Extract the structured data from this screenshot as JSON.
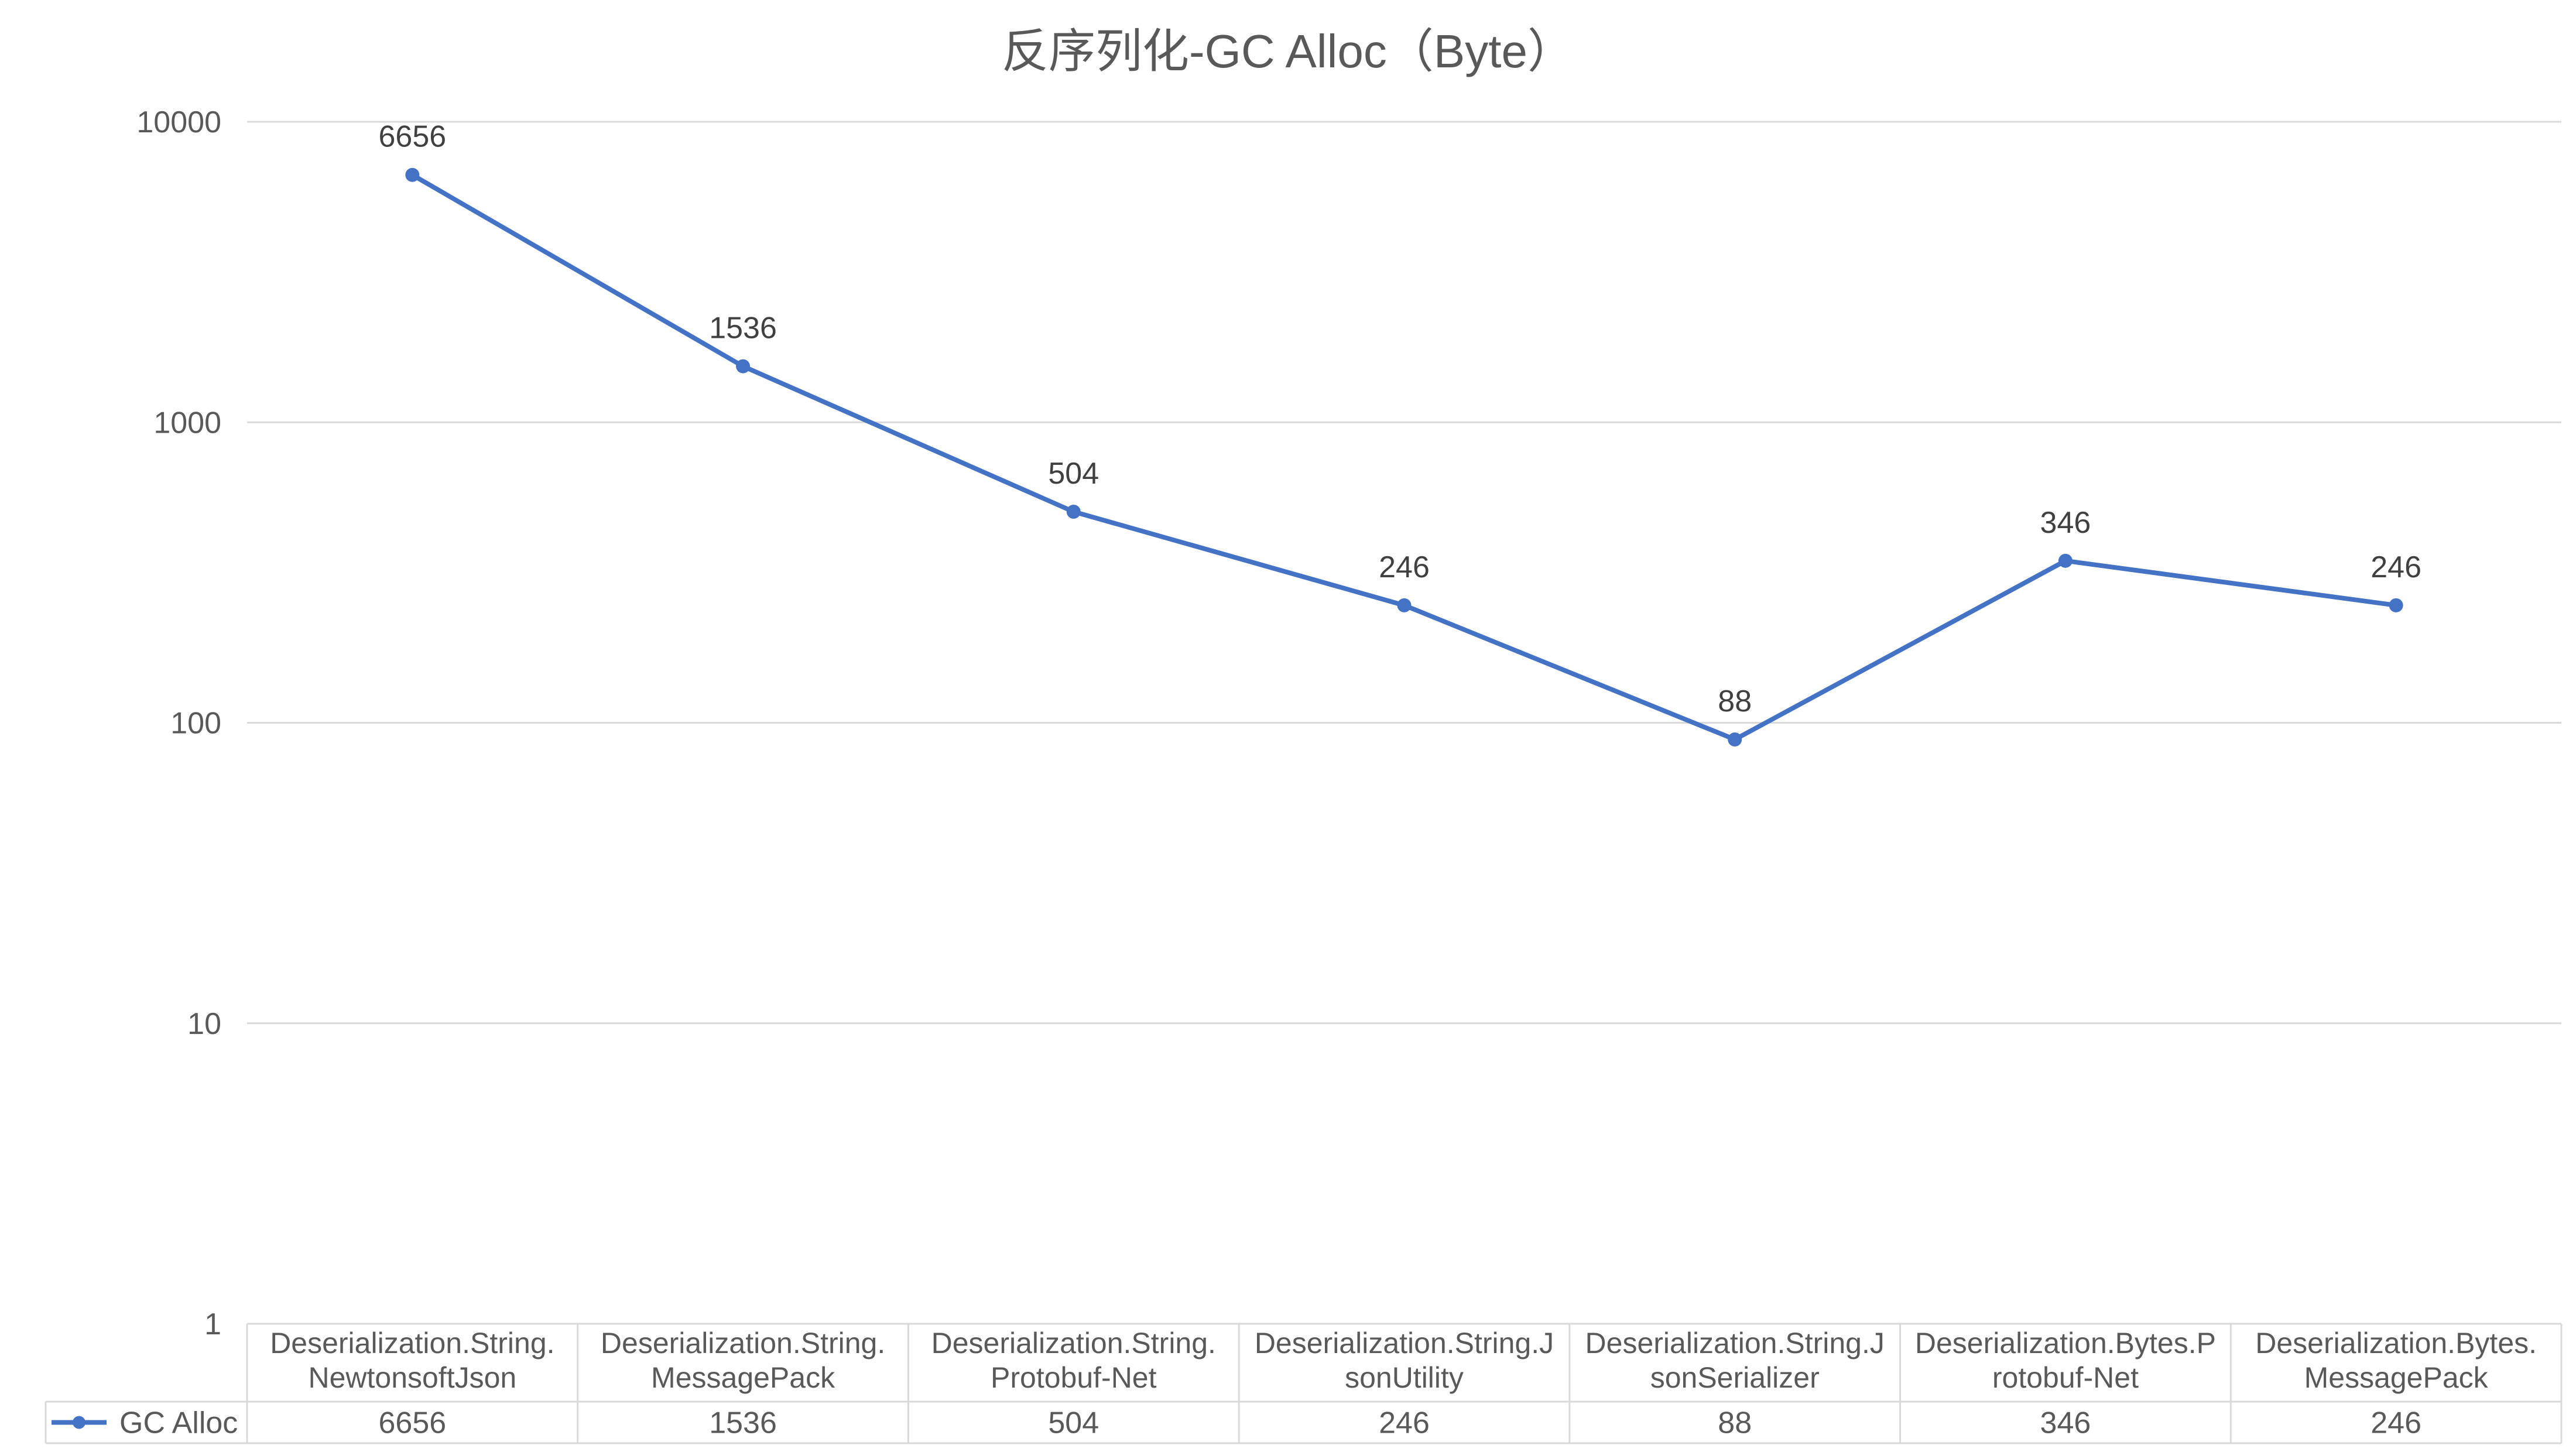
{
  "chart_data": {
    "type": "line",
    "title": "反序列化-GC Alloc（Byte）",
    "xlabel": "",
    "ylabel": "",
    "y_scale": "log",
    "ylim": [
      1,
      10000
    ],
    "y_ticks": [
      "1",
      "10",
      "100",
      "1000",
      "10000"
    ],
    "grid": true,
    "legend_position": "data-table-left",
    "data_table": true,
    "categories": [
      [
        "Deserialization.String.",
        "NewtonsoftJson"
      ],
      [
        "Deserialization.String.",
        "MessagePack"
      ],
      [
        "Deserialization.String.",
        "Protobuf-Net"
      ],
      [
        "Deserialization.String.J",
        "sonUtility"
      ],
      [
        "Deserialization.String.J",
        "sonSerializer"
      ],
      [
        "Deserialization.Bytes.P",
        "rotobuf-Net"
      ],
      [
        "Deserialization.Bytes.",
        "MessagePack"
      ]
    ],
    "series": [
      {
        "name": "GC Alloc",
        "color": "#4472C4",
        "values": [
          6656,
          1536,
          504,
          246,
          88,
          346,
          246
        ]
      }
    ]
  }
}
